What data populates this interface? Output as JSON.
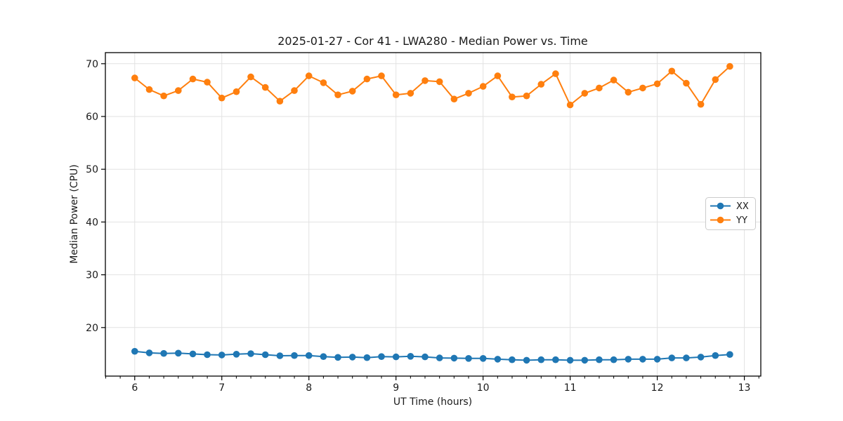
{
  "figure": {
    "background": "#ffffff",
    "text_color": "#1a1a1a",
    "spine_color": "#000000",
    "grid_color": "#e2e2e2",
    "legend_border_color": "#cccccc"
  },
  "chart_data": {
    "type": "line",
    "title": "2025-01-27 - Cor 41 - LWA280 - Median Power vs. Time",
    "xlabel": "UT Time (hours)",
    "ylabel": "Median Power (CPU)",
    "xlim": [
      5.663,
      13.189
    ],
    "ylim": [
      10.8,
      72.1
    ],
    "x_ticks": [
      6,
      7,
      8,
      9,
      10,
      11,
      12,
      13
    ],
    "y_ticks": [
      20,
      30,
      40,
      50,
      60,
      70
    ],
    "x_minor_divisions": 6,
    "grid": true,
    "legend": {
      "position": "center-right",
      "entries": [
        "XX",
        "YY"
      ]
    },
    "x": [
      6.0,
      6.167,
      6.333,
      6.5,
      6.667,
      6.833,
      7.0,
      7.167,
      7.333,
      7.5,
      7.667,
      7.833,
      8.0,
      8.167,
      8.333,
      8.5,
      8.667,
      8.833,
      9.0,
      9.167,
      9.333,
      9.5,
      9.667,
      9.833,
      10.0,
      10.167,
      10.333,
      10.5,
      10.667,
      10.833,
      11.0,
      11.167,
      11.333,
      11.5,
      11.667,
      11.833,
      12.0,
      12.167,
      12.333,
      12.5,
      12.667,
      12.833
    ],
    "series": [
      {
        "name": "XX",
        "color": "#1f77b4",
        "values": [
          15.5,
          15.2,
          15.1,
          15.15,
          15.0,
          14.85,
          14.8,
          14.95,
          15.05,
          14.85,
          14.65,
          14.7,
          14.7,
          14.5,
          14.35,
          14.4,
          14.3,
          14.5,
          14.45,
          14.55,
          14.45,
          14.25,
          14.2,
          14.15,
          14.15,
          14.0,
          13.9,
          13.8,
          13.9,
          13.9,
          13.8,
          13.8,
          13.9,
          13.9,
          14.0,
          14.0,
          14.0,
          14.25,
          14.25,
          14.4,
          14.7,
          14.9
        ]
      },
      {
        "name": "YY",
        "color": "#ff7f0e",
        "values": [
          67.3,
          65.1,
          63.9,
          64.9,
          67.1,
          66.5,
          63.5,
          64.7,
          67.5,
          65.5,
          62.9,
          64.9,
          67.7,
          66.4,
          64.1,
          64.8,
          67.1,
          67.7,
          64.1,
          64.4,
          66.8,
          66.6,
          63.3,
          64.4,
          65.7,
          67.7,
          63.7,
          63.9,
          66.1,
          68.1,
          62.2,
          64.4,
          65.4,
          66.9,
          64.6,
          65.4,
          66.2,
          68.6,
          66.3,
          62.3,
          67.0,
          69.5
        ]
      }
    ]
  }
}
